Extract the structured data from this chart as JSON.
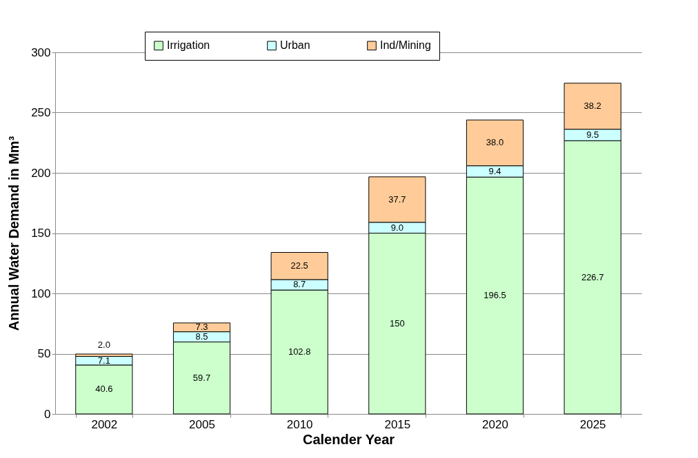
{
  "chart_data": {
    "type": "bar",
    "stacked": true,
    "xlabel": "Calender Year",
    "ylabel": "Annual Water Demand in Mm³",
    "categories": [
      "2002",
      "2005",
      "2010",
      "2015",
      "2020",
      "2025"
    ],
    "series": [
      {
        "name": "Irrigation",
        "color": "#ccffcc",
        "values": [
          40.6,
          59.7,
          102.8,
          150,
          196.5,
          226.7
        ],
        "value_labels": [
          "40.6",
          "59.7",
          "102.8",
          "150",
          "196.5",
          "226.7"
        ]
      },
      {
        "name": "Urban",
        "color": "#ccffff",
        "values": [
          7.1,
          8.5,
          8.7,
          9.0,
          9.4,
          9.5
        ],
        "value_labels": [
          "7.1",
          "8.5",
          "8.7",
          "9.0",
          "9.4",
          "9.5"
        ]
      },
      {
        "name": "Ind/Mining",
        "color": "#ffcc99",
        "values": [
          2.0,
          7.3,
          22.5,
          37.7,
          38.0,
          38.2
        ],
        "value_labels": [
          "2.0",
          "7.3",
          "22.5",
          "37.7",
          "38.0",
          "38.2"
        ]
      }
    ],
    "ylim": [
      0,
      300
    ],
    "yticks": [
      0,
      50,
      100,
      150,
      200,
      250,
      300
    ],
    "grid": "y",
    "legend": "top"
  }
}
